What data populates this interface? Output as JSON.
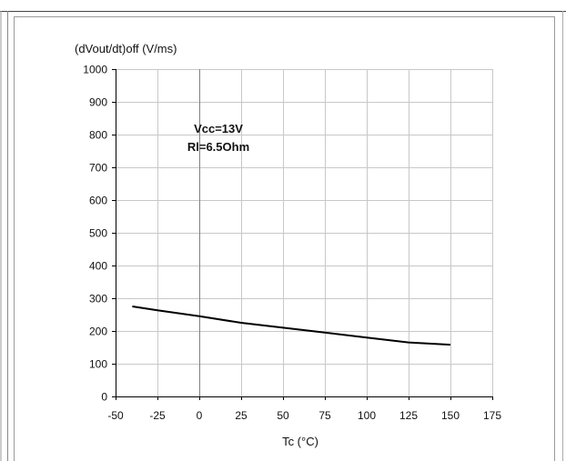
{
  "chart_data": {
    "type": "line",
    "title": "",
    "ylabel": "(dVout/dt)off (V/ms)",
    "xlabel": "Tc (°C)",
    "xlim": [
      -50,
      175
    ],
    "ylim": [
      0,
      1000
    ],
    "xticks": [
      -50,
      -25,
      0,
      25,
      50,
      75,
      100,
      125,
      150,
      175
    ],
    "yticks": [
      0,
      100,
      200,
      300,
      400,
      500,
      600,
      700,
      800,
      900,
      1000
    ],
    "grid": true,
    "annotations": [
      "Vcc=13V",
      "Rl=6.5Ohm"
    ],
    "series": [
      {
        "x": [
          -40,
          -25,
          0,
          25,
          50,
          75,
          100,
          125,
          150
        ],
        "values": [
          275,
          263,
          245,
          225,
          210,
          195,
          180,
          165,
          158
        ]
      }
    ]
  },
  "colors": {
    "line": "#000000",
    "grid": "#c8c8c8",
    "axis": "#000000",
    "frame": "#555555"
  }
}
